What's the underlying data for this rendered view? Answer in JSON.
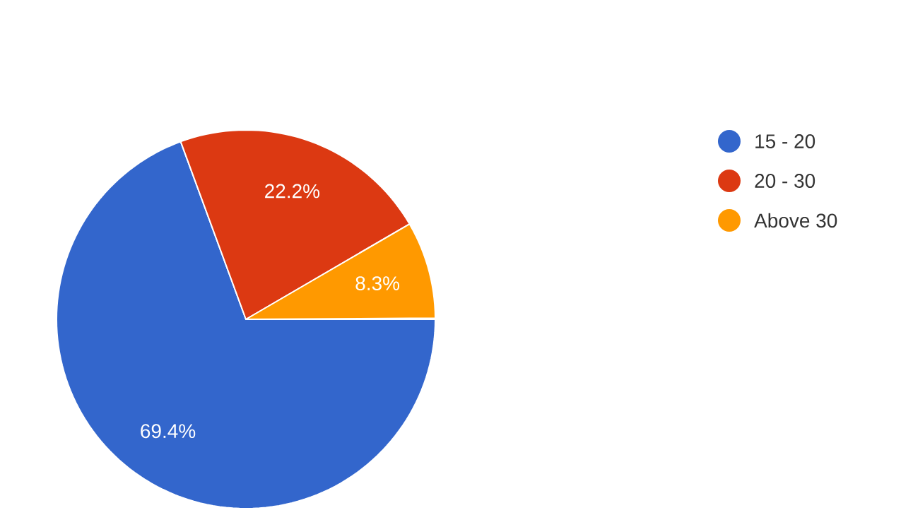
{
  "chart_data": {
    "type": "pie",
    "categories": [
      "15 - 20",
      "20 - 30",
      "Above 30"
    ],
    "values": [
      69.4,
      22.2,
      8.3
    ],
    "colors": [
      "#3366cc",
      "#dc3912",
      "#ff9900"
    ],
    "value_labels": [
      "69.4%",
      "22.2%",
      "8.3%"
    ],
    "legend": "right"
  }
}
